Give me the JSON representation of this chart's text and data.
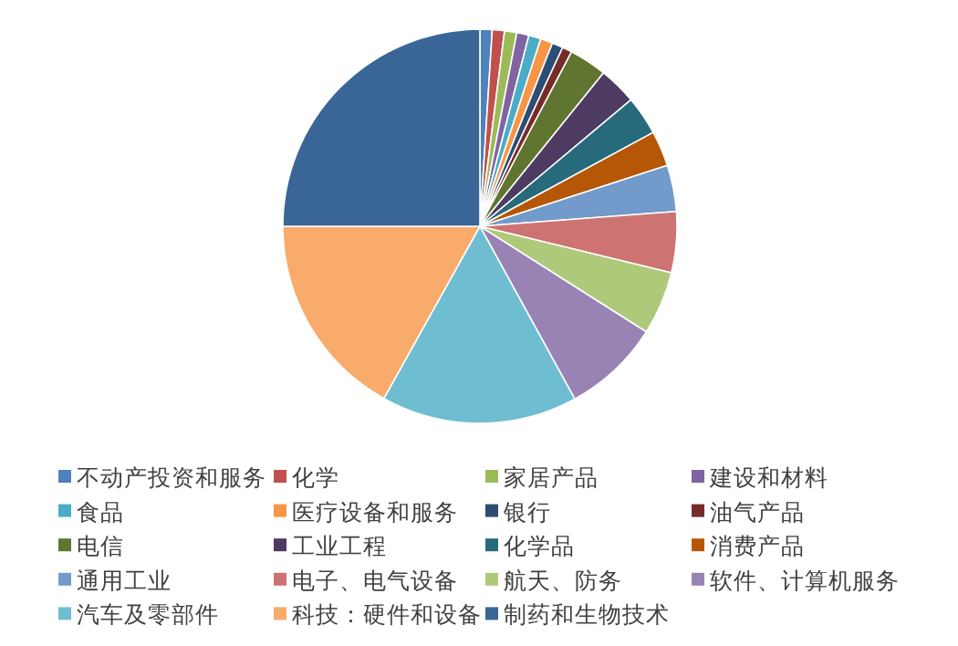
{
  "chart_data": {
    "type": "pie",
    "legend": "bottom",
    "categories": [
      "不动产投资和服务",
      "化学",
      "家居产品",
      "建设和材料",
      "食品",
      "医疗设备和服务",
      "银行",
      "油气产品",
      "电信",
      "工业工程",
      "化学品",
      "消费产品",
      "通用工业",
      "电子、电气设备",
      "航天、防务",
      "软件、计算机服务",
      "汽车及零部件",
      "科技：硬件和设备",
      "制药和生物技术"
    ],
    "values": [
      1.0,
      1.0,
      1.0,
      1.0,
      1.0,
      1.0,
      0.9,
      0.8,
      3.1,
      3.1,
      3.2,
      2.9,
      3.8,
      5.0,
      5.2,
      8.0,
      16.1,
      16.9,
      25.0
    ],
    "colors": [
      "#4f81bd",
      "#c0504d",
      "#9bbb59",
      "#8064a2",
      "#4bacc6",
      "#f79646",
      "#2c4d75",
      "#772c2a",
      "#5f7530",
      "#4d3b62",
      "#276a7c",
      "#b65708",
      "#729aca",
      "#cd7371",
      "#afc97a",
      "#9983b5",
      "#6fbdd1",
      "#f9ab6b",
      "#3a6597"
    ]
  }
}
